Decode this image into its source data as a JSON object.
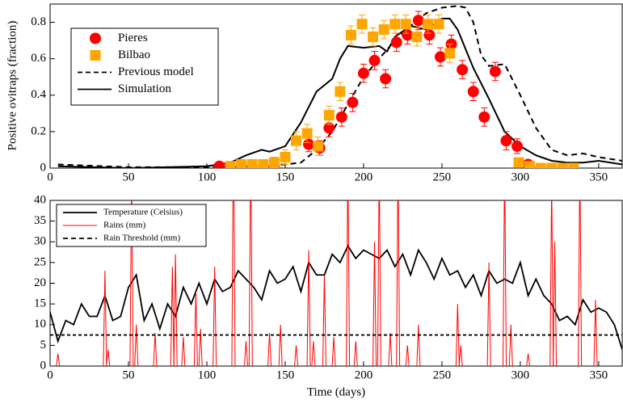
{
  "chart_data": [
    {
      "type": "scatter",
      "ylabel": "Positive ovitraps (fraction)",
      "xlim": [
        0,
        365
      ],
      "xticks": [
        0,
        50,
        100,
        150,
        200,
        250,
        300,
        350
      ],
      "ylim": [
        0,
        0.9
      ],
      "yticks": [
        0,
        0.2,
        0.4,
        0.6,
        0.8
      ],
      "series": [
        {
          "name": "Pieres",
          "color": "#ff0000",
          "marker": "circle",
          "x": [
            108,
            143,
            165,
            172,
            178,
            186,
            193,
            200,
            207,
            214,
            221,
            228,
            235,
            242,
            249,
            256,
            263,
            270,
            277,
            284,
            291,
            298,
            305
          ],
          "values": [
            0.01,
            0.01,
            0.13,
            0.11,
            0.22,
            0.28,
            0.36,
            0.52,
            0.59,
            0.49,
            0.69,
            0.73,
            0.81,
            0.73,
            0.61,
            0.68,
            0.54,
            0.42,
            0.28,
            0.53,
            0.15,
            0.12,
            0.02
          ],
          "errors": [
            0.02,
            0.02,
            0.04,
            0.04,
            0.05,
            0.05,
            0.05,
            0.05,
            0.05,
            0.05,
            0.05,
            0.05,
            0.05,
            0.05,
            0.05,
            0.05,
            0.05,
            0.05,
            0.05,
            0.05,
            0.05,
            0.04,
            0.02
          ]
        },
        {
          "name": "Bilbao",
          "color": "#ffa500",
          "marker": "square",
          "x": [
            115,
            122,
            129,
            136,
            143,
            150,
            157,
            164,
            171,
            178,
            185,
            192,
            199,
            206,
            213,
            220,
            227,
            234,
            241,
            248,
            255,
            299,
            306,
            313,
            320,
            327,
            334
          ],
          "values": [
            0.01,
            0.02,
            0.02,
            0.02,
            0.03,
            0.06,
            0.15,
            0.19,
            0.12,
            0.29,
            0.42,
            0.73,
            0.79,
            0.72,
            0.76,
            0.79,
            0.79,
            0.72,
            0.79,
            0.79,
            0.63,
            0.03,
            0.01,
            0,
            0,
            0,
            0
          ],
          "errors": [
            0.02,
            0.02,
            0.02,
            0.02,
            0.03,
            0.04,
            0.05,
            0.05,
            0.05,
            0.05,
            0.05,
            0.05,
            0.05,
            0.05,
            0.05,
            0.05,
            0.05,
            0.05,
            0.05,
            0.05,
            0.05,
            0.02,
            0.02,
            0.01,
            0.01,
            0.01,
            0.01
          ]
        },
        {
          "name": "Previous model",
          "color": "#000000",
          "dash": true,
          "x": [
            5,
            50,
            100,
            130,
            150,
            160,
            170,
            180,
            190,
            200,
            210,
            220,
            230,
            240,
            250,
            260,
            265,
            270,
            275,
            280,
            290,
            300,
            310,
            320,
            330,
            340,
            350,
            365
          ],
          "values": [
            0.02,
            0.005,
            0.005,
            0.01,
            0.02,
            0.03,
            0.1,
            0.2,
            0.35,
            0.5,
            0.6,
            0.7,
            0.78,
            0.85,
            0.88,
            0.89,
            0.88,
            0.8,
            0.62,
            0.56,
            0.57,
            0.4,
            0.22,
            0.1,
            0.07,
            0.08,
            0.06,
            0.04
          ]
        },
        {
          "name": "Simulation",
          "color": "#000000",
          "dash": false,
          "x": [
            5,
            50,
            100,
            115,
            125,
            135,
            140,
            150,
            160,
            170,
            180,
            185,
            190,
            200,
            210,
            215,
            220,
            230,
            240,
            250,
            255,
            260,
            270,
            280,
            290,
            300,
            310,
            320,
            330,
            340,
            350,
            365
          ],
          "values": [
            0.01,
            0,
            0.01,
            0.03,
            0.07,
            0.1,
            0.09,
            0.12,
            0.25,
            0.42,
            0.49,
            0.6,
            0.67,
            0.66,
            0.67,
            0.64,
            0.72,
            0.78,
            0.76,
            0.82,
            0.82,
            0.76,
            0.55,
            0.38,
            0.2,
            0.12,
            0.07,
            0.04,
            0.03,
            0.03,
            0.04,
            0.02
          ]
        }
      ]
    },
    {
      "type": "line",
      "xlabel": "Time (days)",
      "xlim": [
        0,
        365
      ],
      "xticks": [
        0,
        50,
        100,
        150,
        200,
        250,
        300,
        350
      ],
      "ylim": [
        0,
        40
      ],
      "yticks": [
        0,
        5,
        10,
        15,
        20,
        25,
        30,
        35,
        40
      ],
      "series": [
        {
          "name": "Temperature (Celsius)",
          "color": "#000000",
          "dash": false,
          "x": [
            0,
            5,
            10,
            15,
            20,
            25,
            30,
            35,
            40,
            45,
            50,
            55,
            60,
            65,
            70,
            75,
            80,
            85,
            90,
            95,
            100,
            105,
            110,
            115,
            120,
            125,
            130,
            135,
            140,
            145,
            150,
            155,
            160,
            165,
            170,
            175,
            180,
            185,
            190,
            195,
            200,
            205,
            210,
            215,
            220,
            225,
            230,
            235,
            240,
            245,
            250,
            255,
            260,
            265,
            270,
            275,
            280,
            285,
            290,
            295,
            300,
            305,
            310,
            315,
            320,
            325,
            330,
            335,
            340,
            345,
            350,
            355,
            360,
            365
          ],
          "values": [
            13,
            6,
            11,
            10,
            15,
            12,
            12,
            17,
            11,
            12,
            19,
            22,
            11,
            15,
            9,
            15,
            12,
            19,
            15,
            20,
            15,
            21,
            18,
            19,
            23,
            21,
            19,
            16,
            23,
            20,
            21,
            24,
            18,
            25,
            22,
            22,
            27,
            25,
            29,
            26,
            28,
            27,
            26,
            28,
            24,
            27,
            22,
            28,
            25,
            21,
            26,
            22,
            23,
            19,
            22,
            17,
            23,
            20,
            21,
            20,
            25,
            17,
            21,
            17,
            15,
            11,
            12,
            10,
            16,
            13,
            14,
            13,
            10,
            4
          ]
        },
        {
          "name": "Rains (mm)",
          "color": "#ff0000",
          "spikes": true,
          "x": [
            5,
            35,
            37,
            52,
            55,
            67,
            78,
            80,
            85,
            93,
            96,
            105,
            117,
            125,
            128,
            140,
            147,
            157,
            165,
            168,
            175,
            181,
            190,
            195,
            207,
            210,
            217,
            222,
            228,
            235,
            260,
            262,
            280,
            290,
            294,
            305,
            320,
            322,
            338,
            348
          ],
          "values": [
            3,
            23,
            4,
            45,
            10,
            8,
            24,
            27,
            7,
            18,
            9,
            24,
            60,
            6,
            55,
            8,
            10,
            5,
            28,
            6,
            22,
            7,
            50,
            6,
            30,
            50,
            8,
            50,
            5,
            10,
            15,
            5,
            25,
            50,
            10,
            3,
            45,
            30,
            50,
            16
          ]
        },
        {
          "name": "Rain Threshold (mm)",
          "color": "#000000",
          "dash": true,
          "x": [
            0,
            365
          ],
          "values": [
            7.5,
            7.5
          ]
        }
      ]
    }
  ]
}
